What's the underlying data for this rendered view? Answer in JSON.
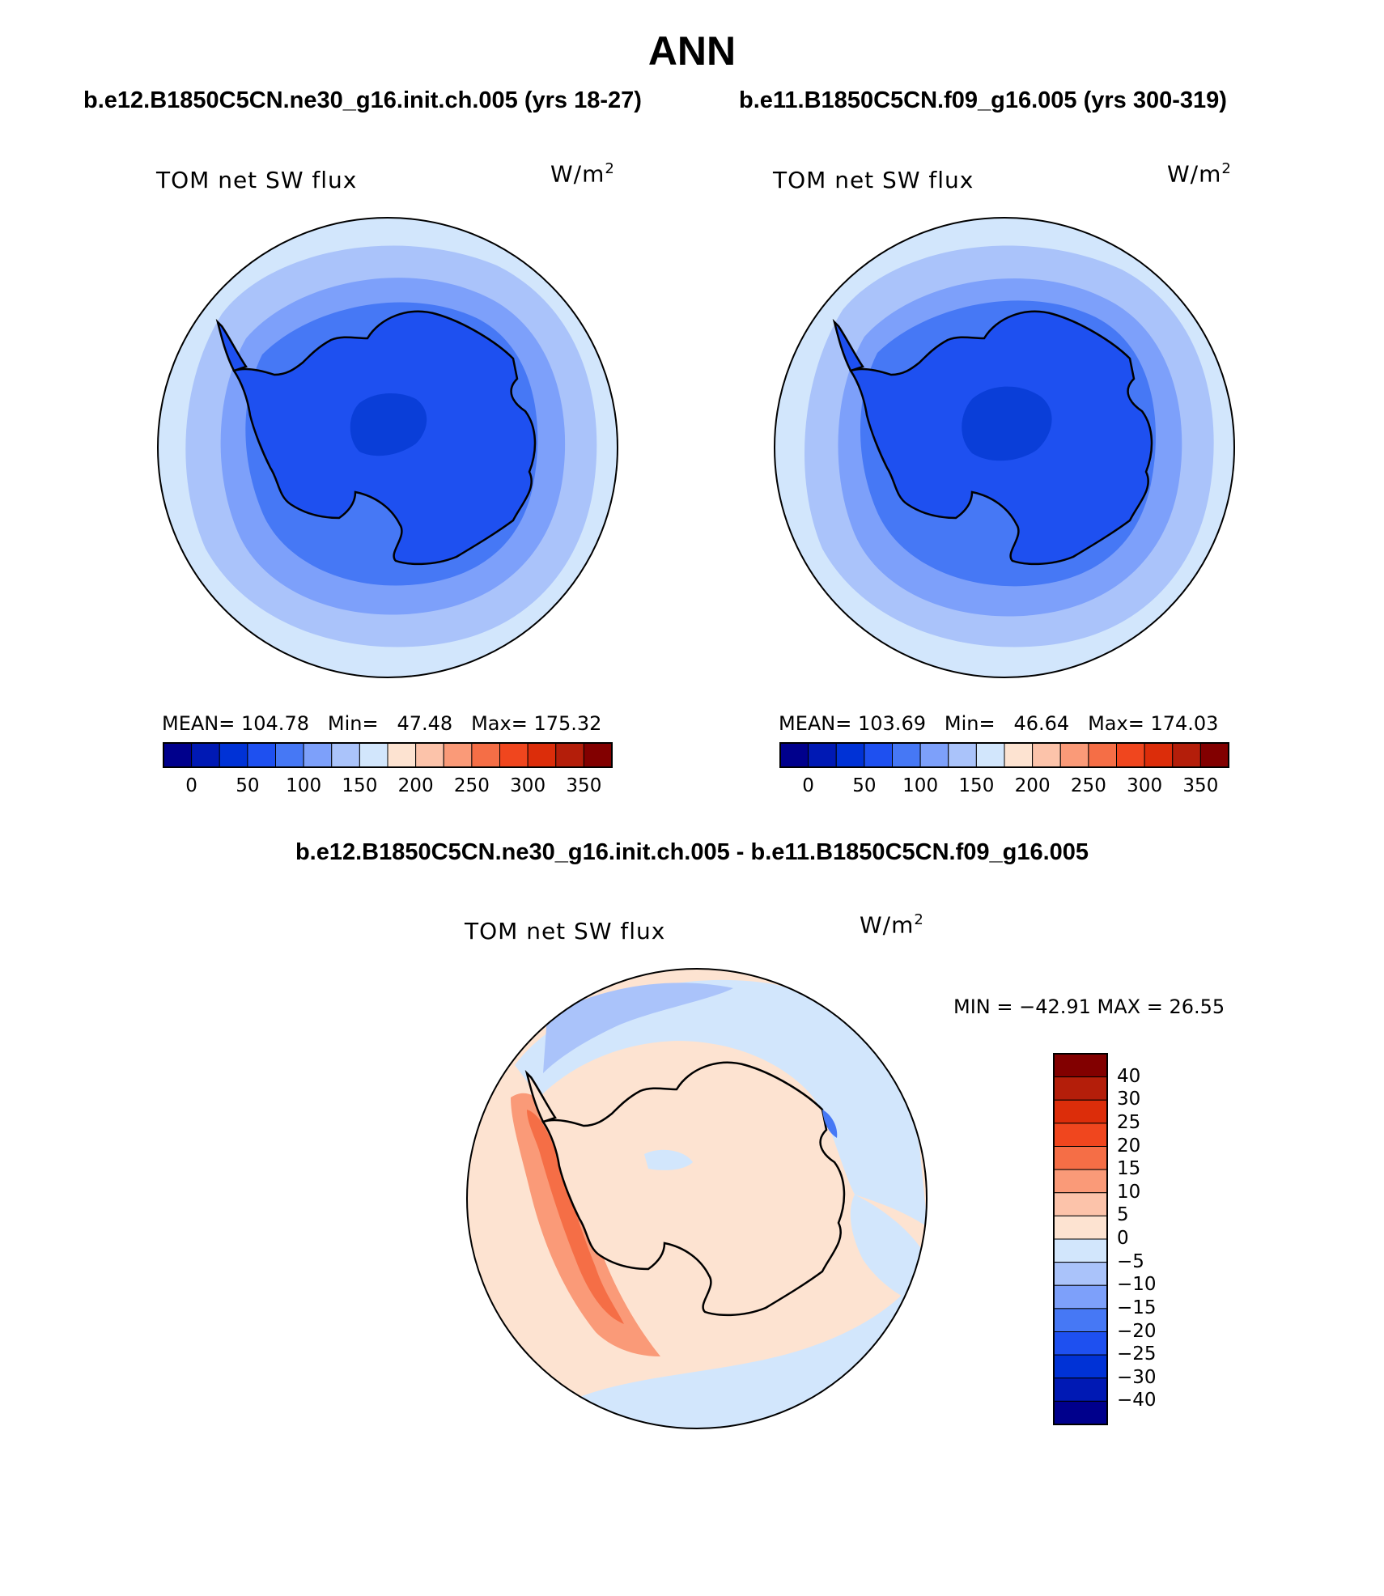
{
  "title": "ANN",
  "panels": {
    "test": {
      "case_title": "b.e12.B1850C5CN.ne30_g16.init.ch.005 (yrs 18-27)",
      "variable_label": "TOM net SW flux",
      "units": "W/m",
      "units_exponent": "2",
      "stats": {
        "mean_label": "MEAN=",
        "mean": "104.78",
        "min_label": "Min=",
        "min": "47.48",
        "max_label": "Max=",
        "max": "175.32"
      }
    },
    "control": {
      "case_title": "b.e11.B1850C5CN.f09_g16.005 (yrs 300-319)",
      "variable_label": "TOM net SW flux",
      "units": "W/m",
      "units_exponent": "2",
      "stats": {
        "mean_label": "MEAN=",
        "mean": "103.69",
        "min_label": "Min=",
        "min": "46.64",
        "max_label": "Max=",
        "max": "174.03"
      }
    },
    "difference": {
      "case_title": "b.e12.B1850C5CN.ne30_g16.init.ch.005 - b.e11.B1850C5CN.f09_g16.005",
      "variable_label": "TOM net SW flux",
      "units": "W/m",
      "units_exponent": "2",
      "minmax_text": "MIN = −42.91 MAX =  26.55"
    }
  },
  "colorbars": {
    "absolute": {
      "tick_labels": [
        "0",
        "50",
        "100",
        "150",
        "200",
        "250",
        "300",
        "350"
      ],
      "colors": [
        "#00008c",
        "#0019b4",
        "#0032d6",
        "#1e50f0",
        "#4678f5",
        "#7da0fa",
        "#aac3fa",
        "#d2e6fc",
        "#fde3d1",
        "#fcc3aa",
        "#fa9a78",
        "#f56e46",
        "#f0461e",
        "#dc2d0a",
        "#b41e0a",
        "#820000"
      ]
    },
    "difference": {
      "tick_labels": [
        "40",
        "30",
        "25",
        "20",
        "15",
        "10",
        "5",
        "0",
        "−5",
        "−10",
        "−15",
        "−20",
        "−25",
        "−30",
        "−40"
      ],
      "colors": [
        "#820000",
        "#b41e0a",
        "#dc2d0a",
        "#f0461e",
        "#f56e46",
        "#fa9a78",
        "#fcc3aa",
        "#fde3d1",
        "#d2e6fc",
        "#aac3fa",
        "#7da0fa",
        "#4678f5",
        "#1e50f0",
        "#0032d6",
        "#0019b4",
        "#00008c"
      ]
    }
  },
  "map_colors": {
    "outer": "#d2e6fc",
    "ring2": "#aac3fa",
    "ring3": "#7da0fa",
    "ring4": "#4678f5",
    "land": "#1e50f0",
    "center": "#0a3ed8",
    "diff_ocean": "#fde3d1",
    "diff_neg": "#d2e6fc",
    "diff_neg2": "#aac3fa",
    "diff_pos": "#fa9a78",
    "diff_pos2": "#f56e46"
  }
}
